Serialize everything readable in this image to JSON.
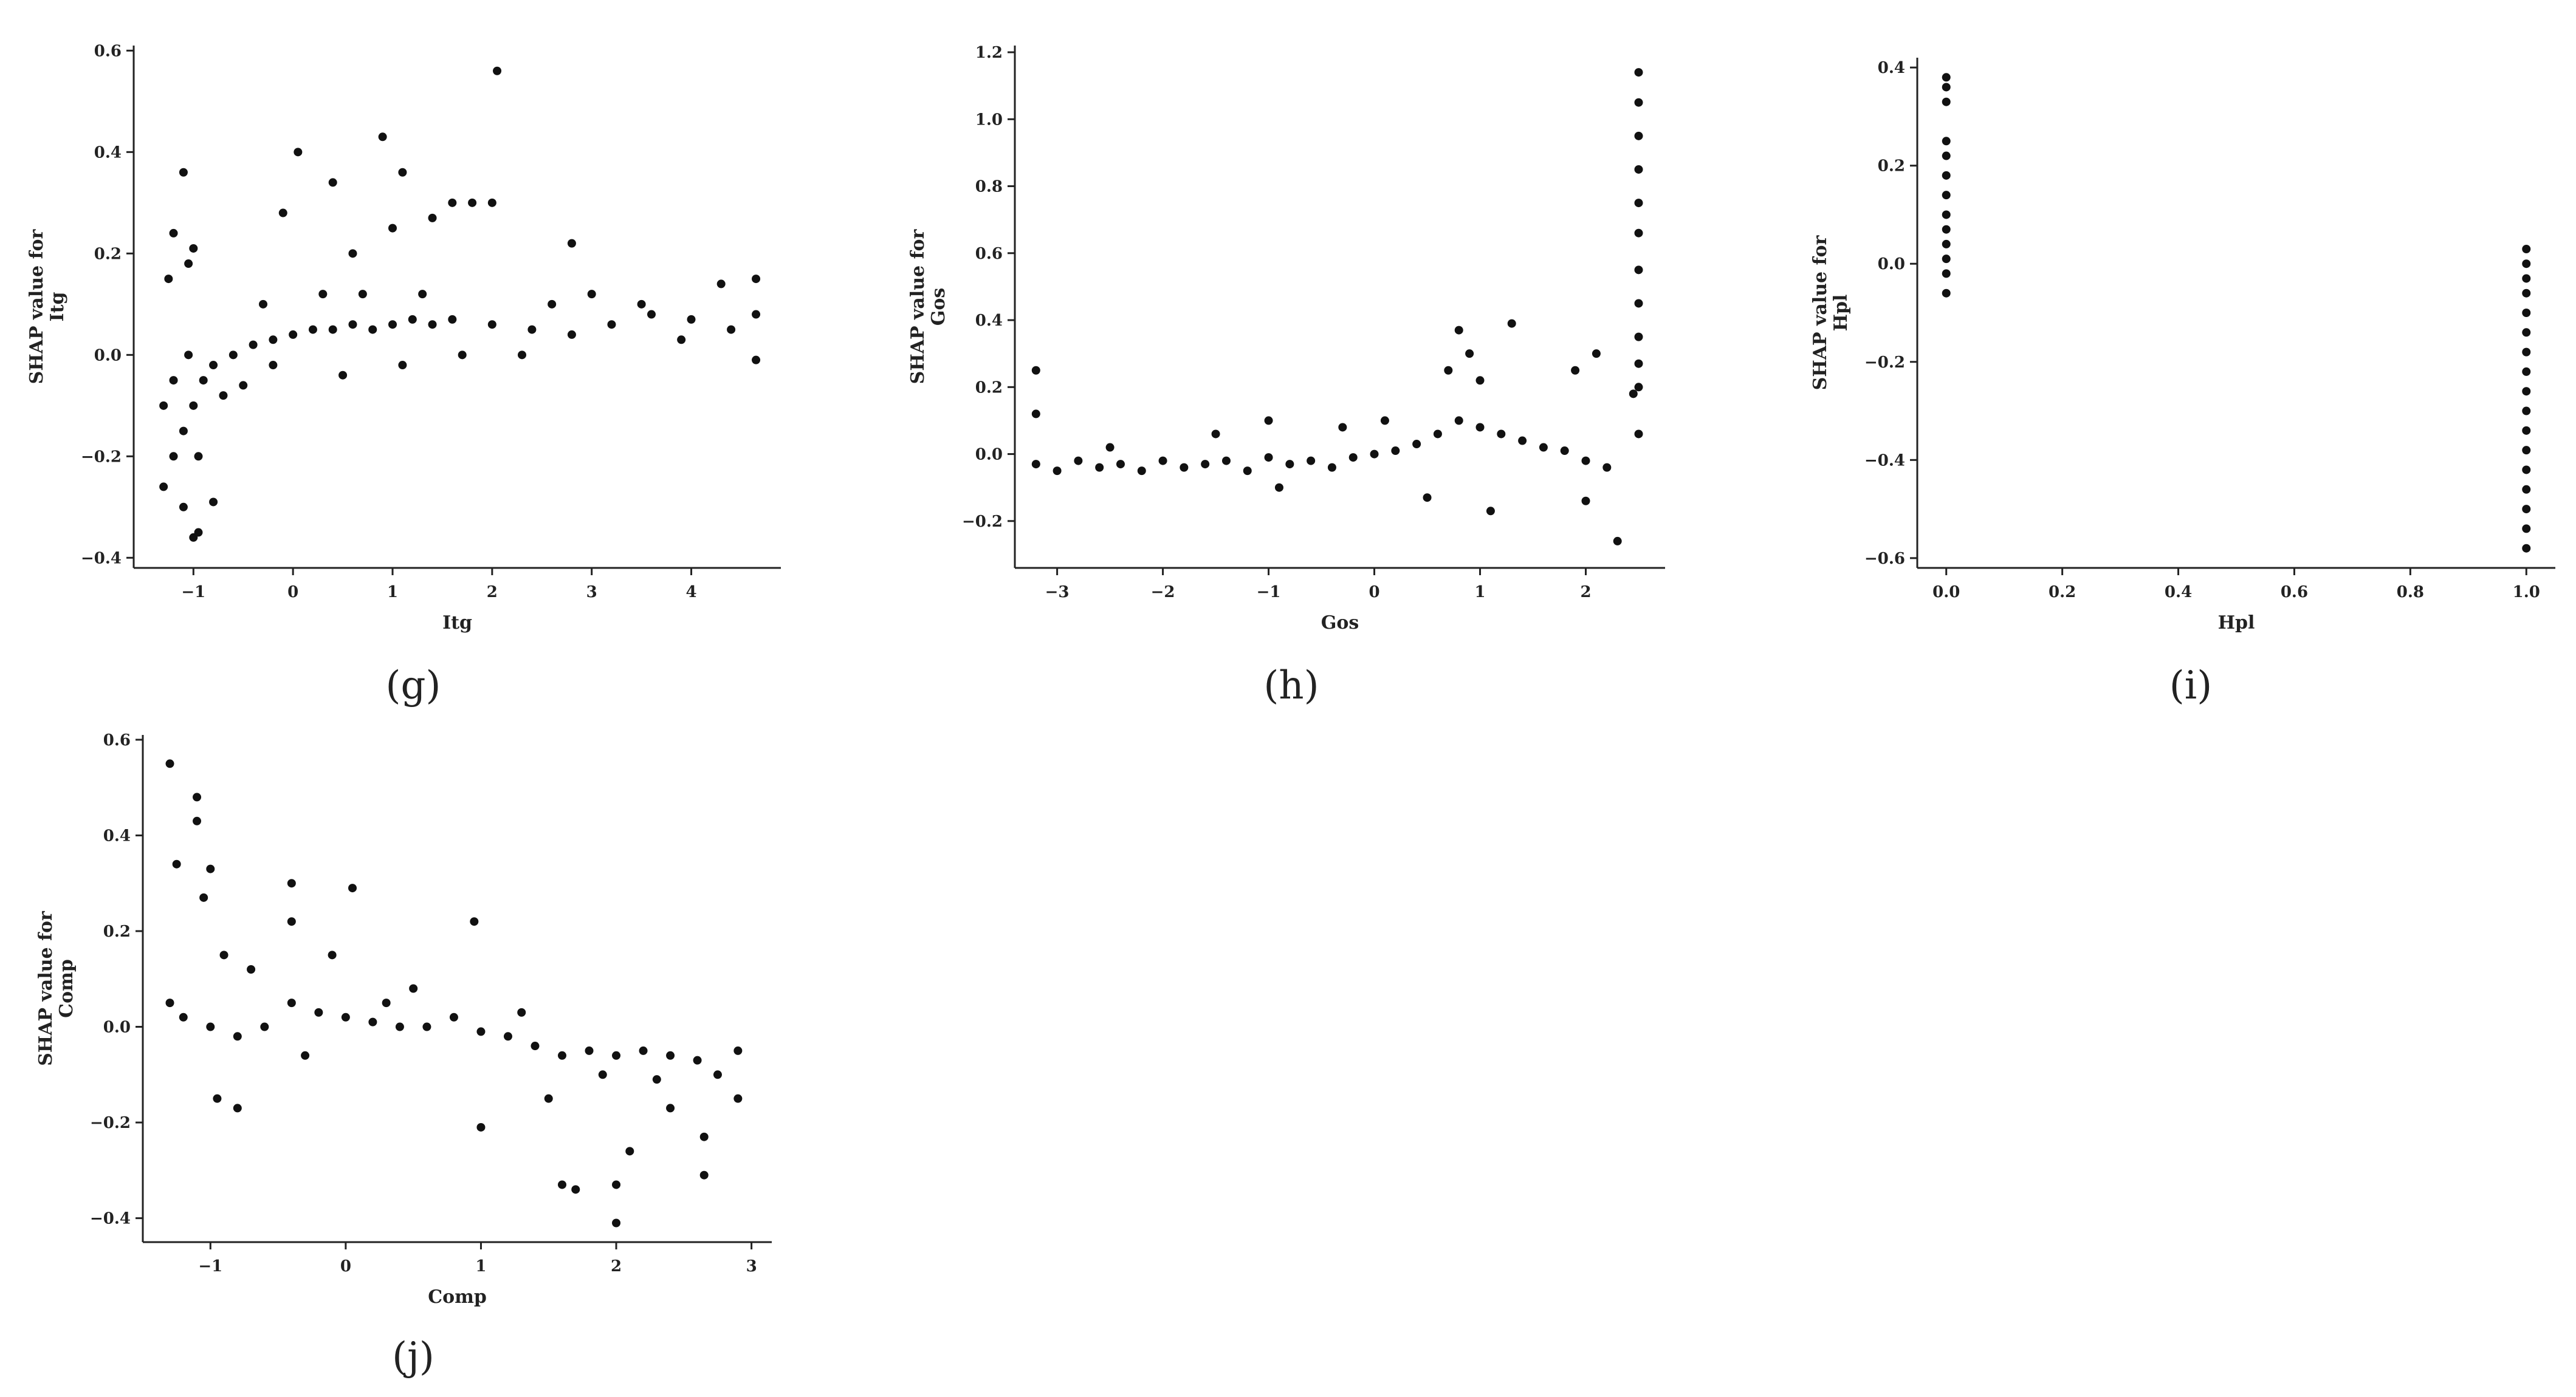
{
  "chart_data": [
    {
      "type": "scatter",
      "panel_label": "(g)",
      "xlabel": "Itg",
      "ylabel": [
        "SHAP value for",
        "Itg"
      ],
      "xlim": [
        -1.6,
        4.9
      ],
      "ylim": [
        -0.42,
        0.61
      ],
      "xticks": [
        -1,
        0,
        1,
        2,
        3,
        4
      ],
      "yticks": [
        -0.4,
        -0.2,
        0.0,
        0.2,
        0.4,
        0.6
      ],
      "yticklabels": [
        "−0.4",
        "−0.2",
        "0.0",
        "0.2",
        "0.4",
        "0.6"
      ],
      "xticklabels": [
        "−1",
        "0",
        "1",
        "2",
        "3",
        "4"
      ],
      "points": [
        [
          -1.1,
          0.36
        ],
        [
          -1.2,
          0.24
        ],
        [
          -1.25,
          0.15
        ],
        [
          -1.0,
          0.21
        ],
        [
          -1.05,
          0.18
        ],
        [
          -1.3,
          -0.26
        ],
        [
          -1.0,
          -0.36
        ],
        [
          -0.95,
          -0.35
        ],
        [
          -1.1,
          -0.3
        ],
        [
          -0.8,
          -0.29
        ],
        [
          -1.2,
          -0.2
        ],
        [
          0.05,
          0.4
        ],
        [
          0.9,
          0.43
        ],
        [
          1.1,
          0.36
        ],
        [
          2.05,
          0.56
        ],
        [
          1.6,
          0.3
        ],
        [
          1.4,
          0.27
        ],
        [
          1.8,
          0.3
        ],
        [
          2.0,
          0.3
        ],
        [
          2.8,
          0.22
        ],
        [
          0.4,
          0.34
        ],
        [
          -0.1,
          0.28
        ],
        [
          0.6,
          0.2
        ],
        [
          1.0,
          0.25
        ],
        [
          -1.2,
          -0.05
        ],
        [
          -1.0,
          -0.1
        ],
        [
          -0.9,
          -0.05
        ],
        [
          -0.8,
          -0.02
        ],
        [
          -0.6,
          0.0
        ],
        [
          -0.4,
          0.02
        ],
        [
          -0.2,
          0.03
        ],
        [
          0.0,
          0.04
        ],
        [
          0.2,
          0.05
        ],
        [
          0.4,
          0.05
        ],
        [
          0.6,
          0.06
        ],
        [
          0.8,
          0.05
        ],
        [
          1.0,
          0.06
        ],
        [
          1.2,
          0.07
        ],
        [
          1.4,
          0.06
        ],
        [
          1.6,
          0.07
        ],
        [
          2.0,
          0.06
        ],
        [
          2.4,
          0.05
        ],
        [
          2.8,
          0.04
        ],
        [
          3.2,
          0.06
        ],
        [
          3.6,
          0.08
        ],
        [
          4.0,
          0.07
        ],
        [
          4.4,
          0.05
        ],
        [
          4.65,
          0.08
        ],
        [
          4.65,
          0.15
        ],
        [
          4.65,
          -0.01
        ],
        [
          -1.3,
          -0.1
        ],
        [
          -1.1,
          -0.15
        ],
        [
          -0.95,
          -0.2
        ],
        [
          -1.05,
          0.0
        ],
        [
          -0.7,
          -0.08
        ],
        [
          -0.5,
          -0.06
        ],
        [
          -0.3,
          0.1
        ],
        [
          0.3,
          0.12
        ],
        [
          0.7,
          0.12
        ],
        [
          1.3,
          0.12
        ],
        [
          0.5,
          -0.04
        ],
        [
          1.1,
          -0.02
        ],
        [
          1.7,
          0.0
        ],
        [
          2.3,
          0.0
        ],
        [
          3.0,
          0.12
        ],
        [
          3.5,
          0.1
        ],
        [
          4.3,
          0.14
        ],
        [
          3.9,
          0.03
        ],
        [
          2.6,
          0.1
        ],
        [
          -0.2,
          -0.02
        ]
      ]
    },
    {
      "type": "scatter",
      "panel_label": "(h)",
      "xlabel": "Gos",
      "ylabel": [
        "SHAP value for",
        "Gos"
      ],
      "xlim": [
        -3.4,
        2.75
      ],
      "ylim": [
        -0.34,
        1.22
      ],
      "xticks": [
        -3,
        -2,
        -1,
        0,
        1,
        2
      ],
      "xticklabels": [
        "−3",
        "−2",
        "−1",
        "0",
        "1",
        "2"
      ],
      "yticks": [
        -0.2,
        0.0,
        0.2,
        0.4,
        0.6,
        0.8,
        1.0,
        1.2
      ],
      "yticklabels": [
        "−0.2",
        "0.0",
        "0.2",
        "0.4",
        "0.6",
        "0.8",
        "1.0",
        "1.2"
      ],
      "points": [
        [
          -3.2,
          0.25
        ],
        [
          -3.2,
          0.12
        ],
        [
          -3.2,
          -0.03
        ],
        [
          -3.0,
          -0.05
        ],
        [
          -2.8,
          -0.02
        ],
        [
          -2.6,
          -0.04
        ],
        [
          -2.4,
          -0.03
        ],
        [
          -2.2,
          -0.05
        ],
        [
          -2.0,
          -0.02
        ],
        [
          -1.8,
          -0.04
        ],
        [
          -1.6,
          -0.03
        ],
        [
          -1.4,
          -0.02
        ],
        [
          -1.2,
          -0.05
        ],
        [
          -1.0,
          -0.01
        ],
        [
          -0.8,
          -0.03
        ],
        [
          -0.6,
          -0.02
        ],
        [
          -0.4,
          -0.04
        ],
        [
          -0.2,
          -0.01
        ],
        [
          0.0,
          0.0
        ],
        [
          0.2,
          0.01
        ],
        [
          0.4,
          0.03
        ],
        [
          0.6,
          0.06
        ],
        [
          0.8,
          0.1
        ],
        [
          1.0,
          0.08
        ],
        [
          1.2,
          0.06
        ],
        [
          1.4,
          0.04
        ],
        [
          1.6,
          0.02
        ],
        [
          1.8,
          0.01
        ],
        [
          2.0,
          -0.02
        ],
        [
          2.2,
          -0.04
        ],
        [
          0.8,
          0.37
        ],
        [
          0.9,
          0.3
        ],
        [
          1.3,
          0.39
        ],
        [
          0.7,
          0.25
        ],
        [
          1.0,
          0.22
        ],
        [
          2.3,
          -0.26
        ],
        [
          1.1,
          -0.17
        ],
        [
          2.0,
          -0.14
        ],
        [
          0.5,
          -0.13
        ],
        [
          -1.0,
          0.1
        ],
        [
          2.5,
          1.14
        ],
        [
          2.5,
          1.05
        ],
        [
          2.5,
          0.95
        ],
        [
          2.5,
          0.85
        ],
        [
          2.5,
          0.75
        ],
        [
          2.5,
          0.66
        ],
        [
          2.5,
          0.55
        ],
        [
          2.5,
          0.45
        ],
        [
          2.5,
          0.35
        ],
        [
          2.5,
          0.27
        ],
        [
          2.5,
          0.2
        ],
        [
          2.5,
          0.06
        ],
        [
          2.45,
          0.18
        ],
        [
          2.1,
          0.3
        ],
        [
          1.9,
          0.25
        ],
        [
          0.1,
          0.1
        ],
        [
          -0.3,
          0.08
        ],
        [
          -1.5,
          0.06
        ],
        [
          -2.5,
          0.02
        ],
        [
          -0.9,
          -0.1
        ]
      ]
    },
    {
      "type": "scatter",
      "panel_label": "(i)",
      "xlabel": "Hpl",
      "ylabel": [
        "SHAP value for",
        "Hpl"
      ],
      "xlim": [
        -0.05,
        1.05
      ],
      "ylim": [
        -0.62,
        0.42
      ],
      "xticks": [
        0.0,
        0.2,
        0.4,
        0.6,
        0.8,
        1.0
      ],
      "xticklabels": [
        "0.0",
        "0.2",
        "0.4",
        "0.6",
        "0.8",
        "1.0"
      ],
      "yticks": [
        -0.6,
        -0.4,
        -0.2,
        0.0,
        0.2,
        0.4
      ],
      "yticklabels": [
        "−0.6",
        "−0.4",
        "−0.2",
        "0.0",
        "0.2",
        "0.4"
      ],
      "points": [
        [
          0.0,
          0.38
        ],
        [
          0.0,
          0.36
        ],
        [
          0.0,
          0.33
        ],
        [
          0.0,
          0.25
        ],
        [
          0.0,
          0.22
        ],
        [
          0.0,
          0.18
        ],
        [
          0.0,
          0.14
        ],
        [
          0.0,
          0.1
        ],
        [
          0.0,
          0.07
        ],
        [
          0.0,
          0.04
        ],
        [
          0.0,
          0.01
        ],
        [
          0.0,
          -0.02
        ],
        [
          0.0,
          -0.06
        ],
        [
          1.0,
          0.03
        ],
        [
          1.0,
          0.0
        ],
        [
          1.0,
          -0.03
        ],
        [
          1.0,
          -0.06
        ],
        [
          1.0,
          -0.1
        ],
        [
          1.0,
          -0.14
        ],
        [
          1.0,
          -0.18
        ],
        [
          1.0,
          -0.22
        ],
        [
          1.0,
          -0.26
        ],
        [
          1.0,
          -0.3
        ],
        [
          1.0,
          -0.34
        ],
        [
          1.0,
          -0.38
        ],
        [
          1.0,
          -0.42
        ],
        [
          1.0,
          -0.46
        ],
        [
          1.0,
          -0.5
        ],
        [
          1.0,
          -0.54
        ],
        [
          1.0,
          -0.58
        ]
      ]
    },
    {
      "type": "scatter",
      "panel_label": "(j)",
      "xlabel": "Comp",
      "ylabel": [
        "SHAP value for",
        "Comp"
      ],
      "xlim": [
        -1.5,
        3.15
      ],
      "ylim": [
        -0.45,
        0.61
      ],
      "xticks": [
        -1,
        0,
        1,
        2,
        3
      ],
      "xticklabels": [
        "−1",
        "0",
        "1",
        "2",
        "3"
      ],
      "yticks": [
        -0.4,
        -0.2,
        0.0,
        0.2,
        0.4,
        0.6
      ],
      "yticklabels": [
        "−0.4",
        "−0.2",
        "0.0",
        "0.2",
        "0.4",
        "0.6"
      ],
      "points": [
        [
          -1.3,
          0.55
        ],
        [
          -1.1,
          0.48
        ],
        [
          -1.1,
          0.43
        ],
        [
          -1.0,
          0.33
        ],
        [
          -1.05,
          0.27
        ],
        [
          -1.25,
          0.34
        ],
        [
          -0.4,
          0.3
        ],
        [
          0.05,
          0.29
        ],
        [
          0.95,
          0.22
        ],
        [
          -0.4,
          0.22
        ],
        [
          -1.3,
          0.05
        ],
        [
          -1.2,
          0.02
        ],
        [
          -1.0,
          0.0
        ],
        [
          -0.8,
          -0.02
        ],
        [
          -0.6,
          0.0
        ],
        [
          -0.4,
          0.05
        ],
        [
          -0.2,
          0.03
        ],
        [
          0.0,
          0.02
        ],
        [
          0.2,
          0.01
        ],
        [
          0.4,
          0.0
        ],
        [
          0.6,
          0.0
        ],
        [
          0.8,
          0.02
        ],
        [
          1.0,
          -0.01
        ],
        [
          1.2,
          -0.02
        ],
        [
          1.4,
          -0.04
        ],
        [
          1.6,
          -0.06
        ],
        [
          1.8,
          -0.05
        ],
        [
          2.0,
          -0.06
        ],
        [
          2.2,
          -0.05
        ],
        [
          2.4,
          -0.06
        ],
        [
          2.6,
          -0.07
        ],
        [
          2.9,
          -0.05
        ],
        [
          1.0,
          -0.21
        ],
        [
          1.6,
          -0.33
        ],
        [
          1.7,
          -0.34
        ],
        [
          2.0,
          -0.41
        ],
        [
          2.0,
          -0.33
        ],
        [
          2.1,
          -0.26
        ],
        [
          2.65,
          -0.31
        ],
        [
          2.65,
          -0.23
        ],
        [
          2.4,
          -0.17
        ],
        [
          1.5,
          -0.15
        ],
        [
          -0.8,
          -0.17
        ],
        [
          -0.95,
          -0.15
        ],
        [
          2.9,
          -0.15
        ],
        [
          -0.9,
          0.15
        ],
        [
          -0.7,
          0.12
        ],
        [
          -0.1,
          0.15
        ],
        [
          0.3,
          0.05
        ],
        [
          1.3,
          0.03
        ],
        [
          1.9,
          -0.1
        ],
        [
          2.3,
          -0.11
        ],
        [
          2.75,
          -0.1
        ],
        [
          0.5,
          0.08
        ],
        [
          -0.3,
          -0.06
        ]
      ]
    }
  ]
}
